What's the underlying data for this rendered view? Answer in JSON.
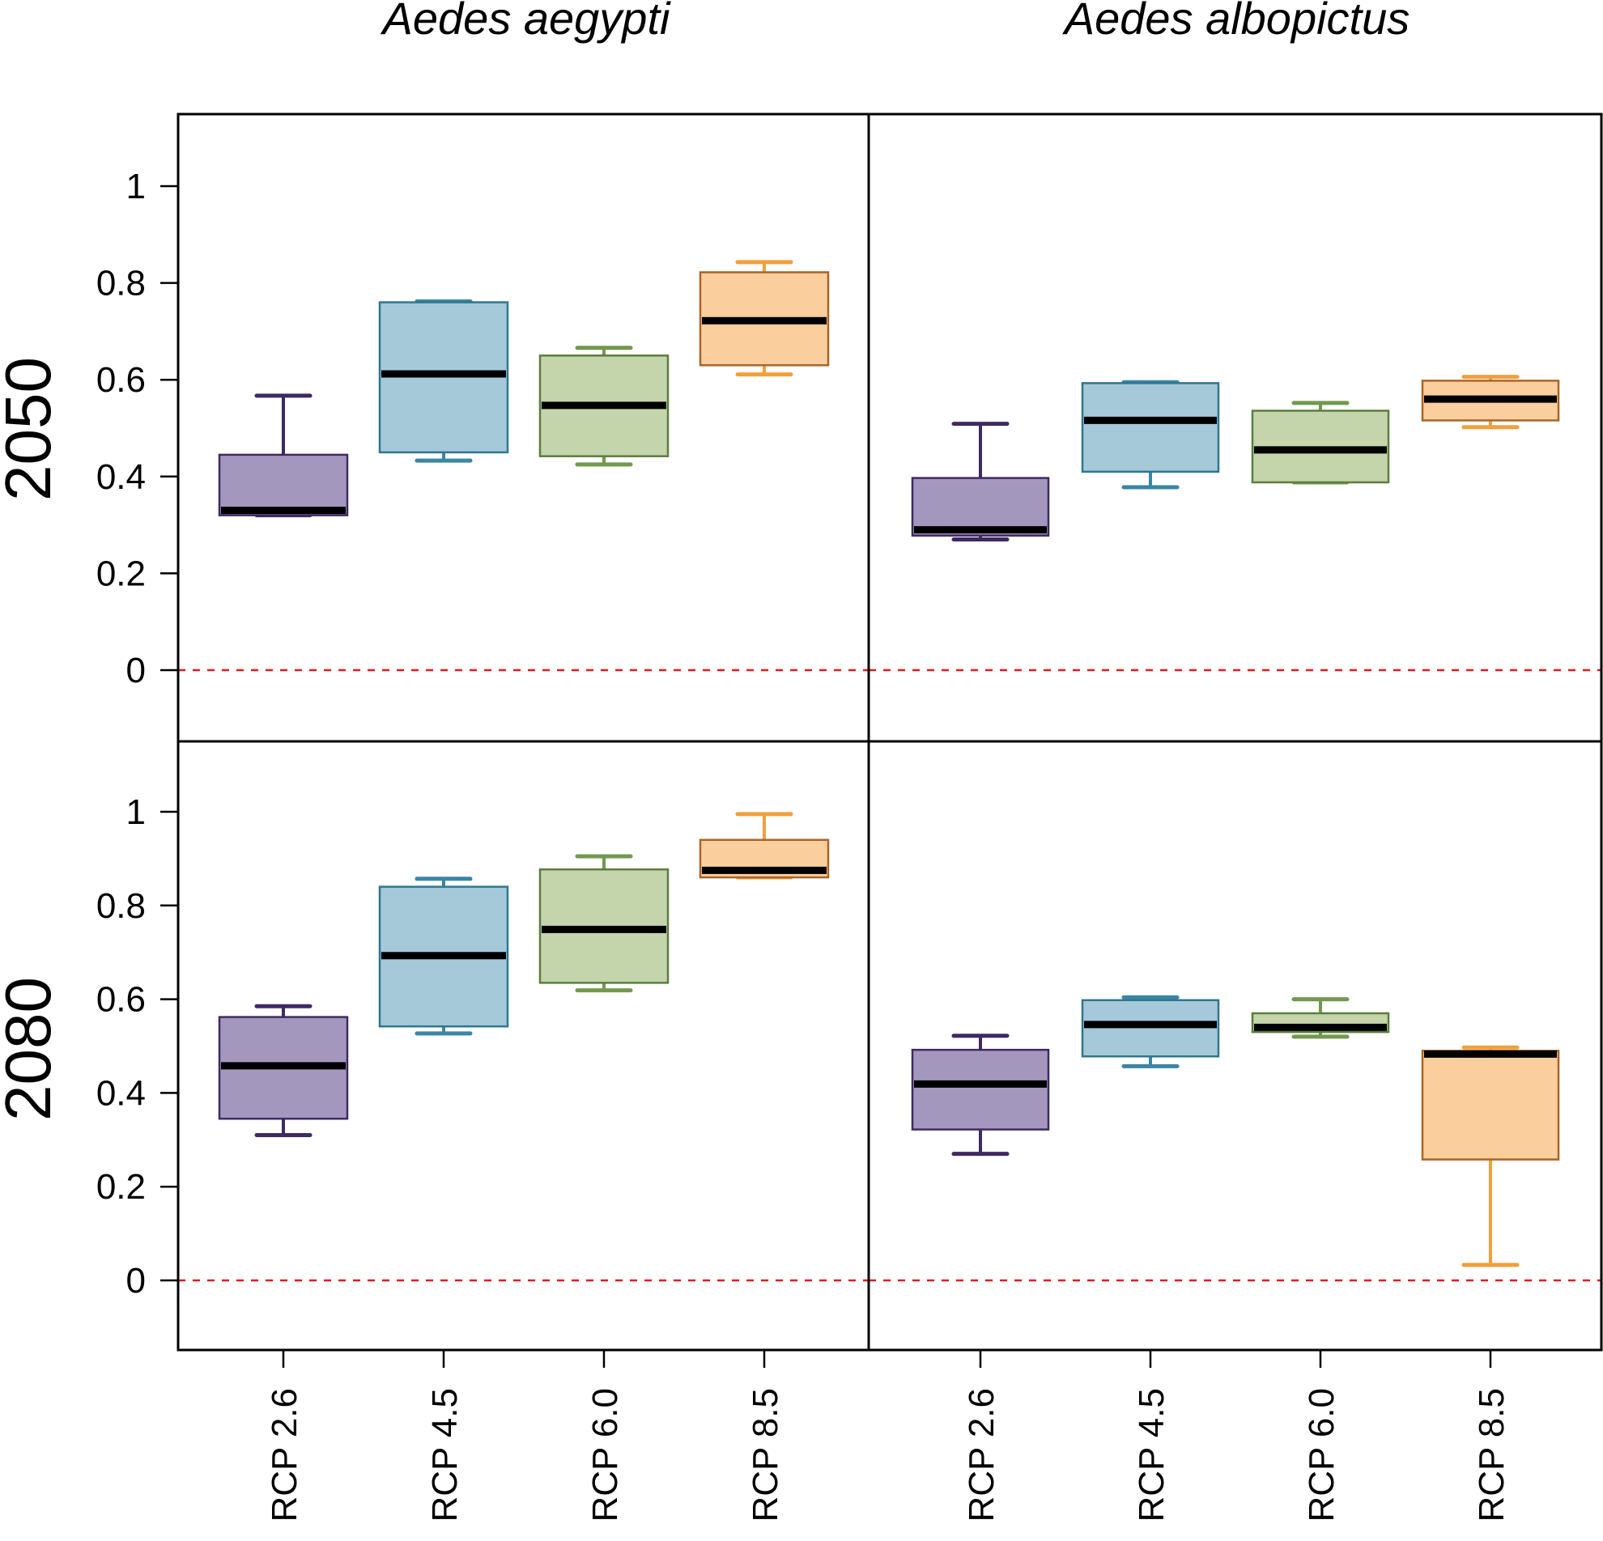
{
  "chart_data": {
    "type": "boxplot",
    "columns": [
      "Aedes aegypti",
      "Aedes albopictus"
    ],
    "rows": [
      "2050",
      "2080"
    ],
    "categories": [
      "RCP 2.6",
      "RCP 4.5",
      "RCP 6.0",
      "RCP 8.5"
    ],
    "ylim": [
      -0.15,
      1.15
    ],
    "yticks": [
      "0",
      "0.2",
      "0.4",
      "0.6",
      "0.8",
      "1"
    ],
    "reference_line": {
      "y": 0,
      "style": "dashed",
      "color": "#e31a1c"
    },
    "colors": {
      "fill": [
        "#a397bd",
        "#a5c9d9",
        "#c4d5ab",
        "#fbcf9d"
      ],
      "stroke": [
        "#3e2a62",
        "#2f7691",
        "#5c7d3e",
        "#a8652a"
      ],
      "whisker": [
        "#3e2a62",
        "#3a86a4",
        "#73984f",
        "#f0a03d"
      ]
    },
    "panels": [
      {
        "row": "2050",
        "column": "Aedes aegypti",
        "boxes": [
          {
            "category": "RCP 2.6",
            "min": 0.32,
            "q1": 0.32,
            "median": 0.33,
            "q3": 0.445,
            "max": 0.567
          },
          {
            "category": "RCP 4.5",
            "min": 0.433,
            "q1": 0.45,
            "median": 0.612,
            "q3": 0.76,
            "max": 0.762
          },
          {
            "category": "RCP 6.0",
            "min": 0.425,
            "q1": 0.442,
            "median": 0.547,
            "q3": 0.65,
            "max": 0.666
          },
          {
            "category": "RCP 8.5",
            "min": 0.611,
            "q1": 0.63,
            "median": 0.722,
            "q3": 0.822,
            "max": 0.843
          }
        ]
      },
      {
        "row": "2050",
        "column": "Aedes albopictus",
        "boxes": [
          {
            "category": "RCP 2.6",
            "min": 0.27,
            "q1": 0.278,
            "median": 0.29,
            "q3": 0.397,
            "max": 0.509
          },
          {
            "category": "RCP 4.5",
            "min": 0.378,
            "q1": 0.41,
            "median": 0.516,
            "q3": 0.593,
            "max": 0.595
          },
          {
            "category": "RCP 6.0",
            "min": 0.388,
            "q1": 0.388,
            "median": 0.455,
            "q3": 0.536,
            "max": 0.552
          },
          {
            "category": "RCP 8.5",
            "min": 0.502,
            "q1": 0.516,
            "median": 0.56,
            "q3": 0.598,
            "max": 0.606
          }
        ]
      },
      {
        "row": "2080",
        "column": "Aedes aegypti",
        "boxes": [
          {
            "category": "RCP 2.6",
            "min": 0.31,
            "q1": 0.345,
            "median": 0.458,
            "q3": 0.562,
            "max": 0.585
          },
          {
            "category": "RCP 4.5",
            "min": 0.527,
            "q1": 0.542,
            "median": 0.693,
            "q3": 0.84,
            "max": 0.857
          },
          {
            "category": "RCP 6.0",
            "min": 0.619,
            "q1": 0.635,
            "median": 0.749,
            "q3": 0.877,
            "max": 0.905
          },
          {
            "category": "RCP 8.5",
            "min": 0.86,
            "q1": 0.86,
            "median": 0.875,
            "q3": 0.94,
            "max": 0.995
          }
        ]
      },
      {
        "row": "2080",
        "column": "Aedes albopictus",
        "boxes": [
          {
            "category": "RCP 2.6",
            "min": 0.27,
            "q1": 0.322,
            "median": 0.419,
            "q3": 0.492,
            "max": 0.522
          },
          {
            "category": "RCP 4.5",
            "min": 0.457,
            "q1": 0.478,
            "median": 0.546,
            "q3": 0.598,
            "max": 0.604
          },
          {
            "category": "RCP 6.0",
            "min": 0.52,
            "q1": 0.53,
            "median": 0.54,
            "q3": 0.57,
            "max": 0.6
          },
          {
            "category": "RCP 8.5",
            "min": 0.033,
            "q1": 0.258,
            "median": 0.483,
            "q3": 0.49,
            "max": 0.497
          }
        ]
      }
    ]
  }
}
